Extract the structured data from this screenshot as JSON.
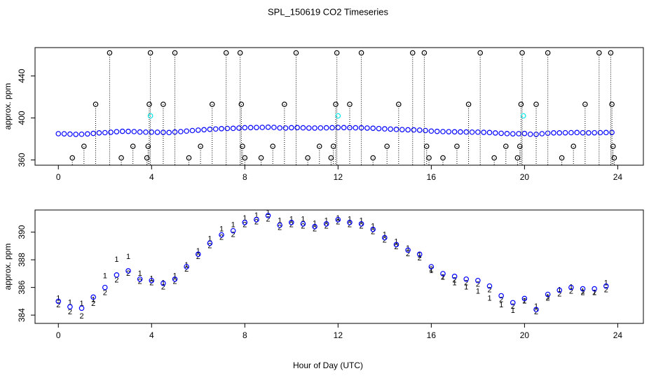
{
  "chart_data": [
    {
      "type": "scatter",
      "title": "SPL_150619  CO2 Timeseries",
      "ylabel": "approx. ppm",
      "xlim": [
        -1,
        25.1
      ],
      "xticks": [
        0,
        4,
        8,
        12,
        16,
        20,
        24
      ],
      "ylim": [
        355,
        467
      ],
      "yticks": [
        360,
        400,
        440
      ],
      "series": [
        {
          "color": "#0000ff",
          "marker": "circle",
          "x": [
            0,
            0.25,
            0.5,
            0.75,
            1,
            1.25,
            1.5,
            1.75,
            2,
            2.25,
            2.5,
            2.75,
            3,
            3.25,
            3.5,
            3.75,
            4,
            4.25,
            4.5,
            4.75,
            5,
            5.25,
            5.5,
            5.75,
            6,
            6.25,
            6.5,
            6.75,
            7,
            7.25,
            7.5,
            7.75,
            8,
            8.25,
            8.5,
            8.75,
            9,
            9.25,
            9.5,
            9.75,
            10,
            10.25,
            10.5,
            10.75,
            11,
            11.25,
            11.5,
            11.75,
            12,
            12.25,
            12.5,
            12.75,
            13,
            13.25,
            13.5,
            13.75,
            14,
            14.25,
            14.5,
            14.75,
            15,
            15.25,
            15.5,
            15.75,
            16,
            16.25,
            16.5,
            16.75,
            17,
            17.25,
            17.5,
            17.75,
            18,
            18.25,
            18.5,
            18.75,
            19,
            19.25,
            19.5,
            19.75,
            20,
            20.25,
            20.5,
            20.75,
            21,
            21.25,
            21.5,
            21.75,
            22,
            22.25,
            22.5,
            22.75,
            23,
            23.25,
            23.5,
            23.75
          ],
          "values": [
            385.0,
            384.9,
            384.6,
            384.4,
            384.5,
            384.8,
            385.3,
            385.8,
            386.0,
            386.4,
            386.9,
            387.3,
            387.2,
            387.0,
            386.6,
            386.5,
            386.5,
            386.4,
            386.3,
            386.1,
            386.6,
            387.0,
            387.5,
            388.0,
            388.4,
            388.8,
            389.2,
            389.5,
            389.8,
            390.0,
            390.1,
            390.4,
            390.7,
            390.8,
            390.9,
            391.0,
            391.2,
            391.0,
            390.5,
            390.4,
            390.7,
            390.8,
            390.6,
            390.4,
            390.4,
            390.5,
            390.6,
            390.7,
            390.9,
            390.8,
            390.7,
            390.6,
            390.6,
            390.4,
            390.2,
            389.9,
            389.6,
            389.4,
            389.1,
            388.9,
            388.7,
            388.6,
            388.4,
            388.0,
            387.5,
            387.2,
            387.0,
            386.9,
            386.8,
            386.7,
            386.6,
            386.5,
            386.5,
            386.3,
            386.1,
            385.7,
            385.4,
            385.1,
            384.9,
            385.0,
            385.2,
            384.5,
            384.4,
            385.0,
            385.5,
            385.8,
            385.8,
            385.9,
            386.0,
            386.1,
            385.9,
            385.8,
            385.9,
            386.0,
            386.1,
            386.2
          ]
        },
        {
          "color": "#000000",
          "marker": "circle",
          "drop": true,
          "x": [
            0.6,
            1.1,
            1.6,
            2.2,
            2.7,
            3.2,
            3.8,
            3.85,
            3.9,
            3.95,
            4.5,
            5.0,
            5.6,
            6.1,
            6.6,
            7.2,
            7.8,
            7.85,
            7.9,
            8.0,
            8.7,
            9.2,
            9.7,
            10.2,
            10.7,
            11.2,
            11.7,
            11.8,
            11.9,
            11.95,
            12.5,
            13.0,
            13.5,
            14.1,
            14.6,
            15.2,
            15.7,
            15.8,
            15.9,
            16.5,
            17.1,
            17.6,
            18.1,
            18.7,
            19.2,
            19.7,
            19.8,
            19.85,
            19.9,
            20.5,
            21.0,
            21.6,
            22.1,
            22.6,
            23.2,
            23.7,
            23.75,
            23.8,
            23.85
          ],
          "values": [
            362,
            373,
            413,
            462,
            362,
            373,
            362,
            373,
            413,
            462,
            413,
            462,
            362,
            373,
            413,
            462,
            462,
            413,
            373,
            362,
            362,
            373,
            413,
            462,
            362,
            373,
            362,
            373,
            413,
            462,
            413,
            462,
            362,
            373,
            413,
            462,
            462,
            373,
            362,
            362,
            373,
            413,
            462,
            362,
            373,
            362,
            373,
            413,
            462,
            413,
            462,
            362,
            373,
            413,
            462,
            462,
            413,
            373,
            362
          ]
        },
        {
          "color": "#00e5e5",
          "marker": "circle",
          "x": [
            3.95,
            12.0,
            19.95
          ],
          "values": [
            402,
            402,
            402
          ]
        }
      ]
    },
    {
      "type": "scatter",
      "ylabel": "approx. ppm",
      "xlabel": "Hour of Day (UTC)",
      "xlim": [
        -1,
        25.1
      ],
      "xticks": [
        0,
        4,
        8,
        12,
        16,
        20,
        24
      ],
      "ylim": [
        383.4,
        391.6
      ],
      "yticks": [
        384,
        386,
        388,
        390
      ],
      "series": [
        {
          "color": "#ff0000",
          "marker": "1",
          "x": [
            0,
            0.5,
            1,
            1.5,
            2,
            2.5,
            3,
            3.5,
            4,
            4.5,
            5,
            5.5,
            6,
            6.5,
            7,
            7.5,
            8,
            8.5,
            9,
            9.5,
            10,
            10.5,
            11,
            11.5,
            12,
            12.5,
            13,
            13.5,
            14,
            14.5,
            15,
            15.5,
            16,
            16.5,
            17,
            17.5,
            18,
            18.5,
            19,
            19.5,
            20,
            20.5,
            21,
            21.5,
            22,
            22.5,
            23,
            23.5
          ],
          "values": [
            385.2,
            384.9,
            384.8,
            385.1,
            386.8,
            388.0,
            388.2,
            387.0,
            386.6,
            386.3,
            386.8,
            387.6,
            388.6,
            389.5,
            390.2,
            390.5,
            391.0,
            391.2,
            391.4,
            390.8,
            390.9,
            390.9,
            390.6,
            390.8,
            391.0,
            390.9,
            390.8,
            390.4,
            389.8,
            389.3,
            388.8,
            388.3,
            387.2,
            386.7,
            386.3,
            386.0,
            385.7,
            385.2,
            384.7,
            384.3,
            385.0,
            384.6,
            385.3,
            385.8,
            386.0,
            385.7,
            385.6,
            386.3
          ]
        },
        {
          "color": "#00cc00",
          "marker": "2",
          "x": [
            0,
            0.5,
            1,
            1.5,
            2,
            2.5,
            3,
            3.5,
            4,
            4.5,
            5,
            5.5,
            6,
            6.5,
            7,
            7.5,
            8,
            8.5,
            9,
            9.5,
            10,
            10.5,
            11,
            11.5,
            12,
            12.5,
            13,
            13.5,
            14,
            14.5,
            15,
            15.5,
            16,
            16.5,
            17,
            17.5,
            18,
            18.5,
            19,
            19.5,
            20,
            20.5,
            21,
            21.5,
            22,
            22.5,
            23,
            23.5
          ],
          "values": [
            384.7,
            384.2,
            383.9,
            384.8,
            385.6,
            386.5,
            387.0,
            386.4,
            386.3,
            386.0,
            386.4,
            387.3,
            388.2,
            389.0,
            389.6,
            389.8,
            390.5,
            390.7,
            390.9,
            390.3,
            390.5,
            390.4,
            390.2,
            390.4,
            390.7,
            390.5,
            390.4,
            390.0,
            389.4,
            388.9,
            388.4,
            388.1,
            387.3,
            386.7,
            386.5,
            386.3,
            386.2,
            385.8,
            385.1,
            384.6,
            385.0,
            384.2,
            385.2,
            385.5,
            385.7,
            385.6,
            385.6,
            385.8
          ]
        },
        {
          "color": "#0000ff",
          "marker": "circle",
          "x": [
            0,
            0.5,
            1,
            1.5,
            2,
            2.5,
            3,
            3.5,
            4,
            4.5,
            5,
            5.5,
            6,
            6.5,
            7,
            7.5,
            8,
            8.5,
            9,
            9.5,
            10,
            10.5,
            11,
            11.5,
            12,
            12.5,
            13,
            13.5,
            14,
            14.5,
            15,
            15.5,
            16,
            16.5,
            17,
            17.5,
            18,
            18.5,
            19,
            19.5,
            20,
            20.5,
            21,
            21.5,
            22,
            22.5,
            23,
            23.5
          ],
          "values": [
            385.0,
            384.6,
            384.5,
            385.3,
            386.0,
            386.9,
            387.2,
            386.6,
            386.5,
            386.3,
            386.6,
            387.5,
            388.4,
            389.2,
            389.8,
            390.1,
            390.7,
            390.9,
            391.2,
            390.5,
            390.7,
            390.6,
            390.4,
            390.6,
            390.9,
            390.7,
            390.6,
            390.2,
            389.6,
            389.1,
            388.7,
            388.4,
            387.5,
            387.0,
            386.8,
            386.6,
            386.5,
            386.1,
            385.4,
            384.9,
            385.2,
            384.4,
            385.5,
            385.8,
            386.0,
            385.9,
            385.9,
            386.1
          ]
        }
      ]
    }
  ]
}
